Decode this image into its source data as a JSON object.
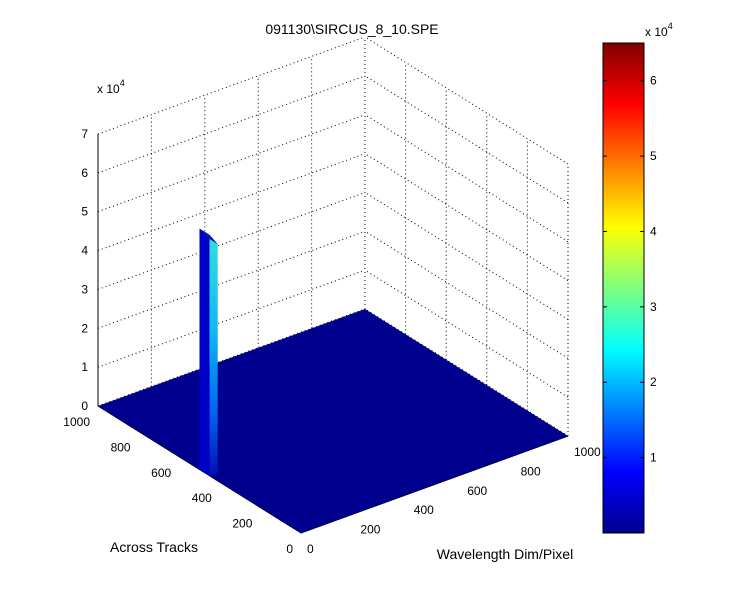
{
  "chart_data": {
    "type": "surface",
    "title": "091130\\SIRCUS_8_10.SPE",
    "xlabel": "Wavelength Dim/Pixel",
    "ylabel": "Across Tracks",
    "zlabel": "",
    "x_ticks": [
      "0",
      "200",
      "400",
      "600",
      "800",
      "1000"
    ],
    "y_ticks": [
      "0",
      "200",
      "400",
      "600",
      "800",
      "1000"
    ],
    "z_ticks": [
      "0",
      "1",
      "2",
      "3",
      "4",
      "5",
      "6",
      "7"
    ],
    "z_multiplier": "x 10",
    "z_multiplier_exp": "4",
    "xlim": [
      0,
      1000
    ],
    "ylim": [
      0,
      1000
    ],
    "zlim": [
      0,
      70000
    ],
    "grid": true,
    "colormap": "jet",
    "surface": {
      "baseline": 0,
      "peak": {
        "x_range": [
          0,
          30
        ],
        "y_range": [
          450,
          500
        ],
        "max_value": 62000
      }
    },
    "colorbar": {
      "ticks": [
        "1",
        "2",
        "3",
        "4",
        "5",
        "6"
      ],
      "multiplier": "x 10",
      "multiplier_exp": "4",
      "range": [
        0,
        65000
      ]
    }
  }
}
